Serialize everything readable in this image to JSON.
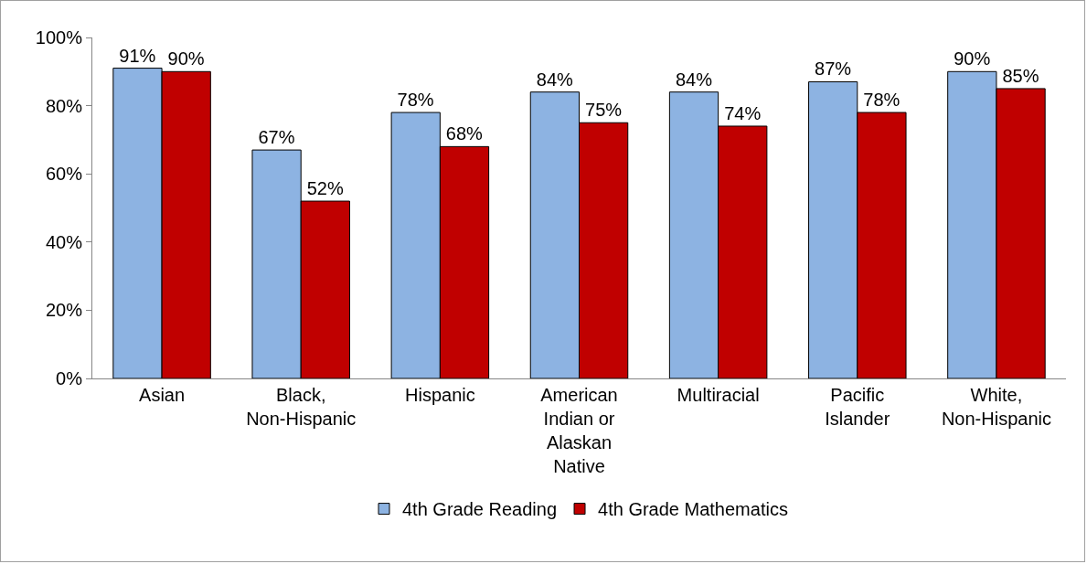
{
  "chart_data": {
    "type": "bar",
    "categories": [
      "Asian",
      "Black, Non-Hispanic",
      "Hispanic",
      "American Indian or Alaskan Native",
      "Multiracial",
      "Pacific Islander",
      "White, Non-Hispanic"
    ],
    "series": [
      {
        "name": "4th Grade Reading",
        "color": "#8db3e2",
        "values": [
          91,
          67,
          78,
          84,
          84,
          87,
          90
        ],
        "value_labels": [
          "91%",
          "67%",
          "78%",
          "84%",
          "84%",
          "87%",
          "90%"
        ]
      },
      {
        "name": "4th Grade Mathematics",
        "color": "#c00000",
        "values": [
          90,
          52,
          68,
          75,
          74,
          78,
          85
        ],
        "value_labels": [
          "90%",
          "52%",
          "68%",
          "75%",
          "74%",
          "78%",
          "85%"
        ]
      }
    ],
    "ylim": [
      0,
      100
    ],
    "yticks": [
      {
        "value": 0,
        "label": "0%"
      },
      {
        "value": 20,
        "label": "20%"
      },
      {
        "value": 40,
        "label": "40%"
      },
      {
        "value": 60,
        "label": "60%"
      },
      {
        "value": 80,
        "label": "80%"
      },
      {
        "value": 100,
        "label": "100%"
      }
    ],
    "grid": false,
    "legend": "bottom"
  }
}
